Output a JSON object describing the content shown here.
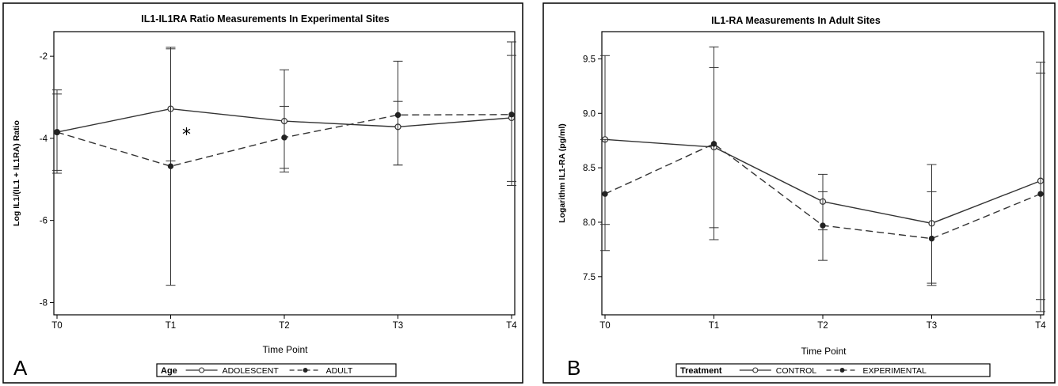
{
  "chart_data": [
    {
      "type": "line",
      "panel_label": "A",
      "title": "IL1-IL1RA Ratio Measurements In Experimental Sites",
      "xlabel": "Time Point",
      "ylabel": "Log IL1/(IL1 + IL1RA) Ratio",
      "categories": [
        "T0",
        "T1",
        "T2",
        "T3",
        "T4"
      ],
      "ylim": [
        -8.3,
        -1.4
      ],
      "yticks": [
        -8,
        -6,
        -4,
        -2
      ],
      "grid": false,
      "legend": {
        "title": "Age",
        "placement": "bottom"
      },
      "annotations": [
        {
          "text": "*",
          "x": "T1",
          "y": -3.8
        }
      ],
      "series": [
        {
          "name": "ADOLESCENT",
          "style": "solid",
          "marker": "open-circle",
          "values": [
            -3.85,
            -3.28,
            -3.58,
            -3.72,
            -3.5
          ],
          "err_low": [
            -4.78,
            -4.55,
            -4.73,
            -4.65,
            -5.05
          ],
          "err_high": [
            -2.92,
            -1.82,
            -2.33,
            -2.12,
            -1.98
          ]
        },
        {
          "name": "ADULT",
          "style": "dashed",
          "marker": "filled-circle",
          "values": [
            -3.85,
            -4.68,
            -3.98,
            -3.43,
            -3.42
          ],
          "err_low": [
            -4.85,
            -7.58,
            -4.82,
            -4.65,
            -5.15
          ],
          "err_high": [
            -2.82,
            -1.78,
            -3.22,
            -3.1,
            -1.65
          ]
        }
      ]
    },
    {
      "type": "line",
      "panel_label": "B",
      "title": "IL1-RA Measurements In Adult Sites",
      "xlabel": "Time Point",
      "ylabel": "Logarithm IL1-RA (pg/ml)",
      "categories": [
        "T0",
        "T1",
        "T2",
        "T3",
        "T4"
      ],
      "ylim": [
        7.15,
        9.75
      ],
      "yticks": [
        7.5,
        8.0,
        8.5,
        9.0,
        9.5
      ],
      "ytick_labels": [
        "7.5",
        "8.0",
        "8.5",
        "9.0",
        "9.5"
      ],
      "grid": false,
      "legend": {
        "title": "Treatment",
        "placement": "bottom"
      },
      "series": [
        {
          "name": "CONTROL",
          "style": "solid",
          "marker": "open-circle",
          "values": [
            8.76,
            8.69,
            8.19,
            7.99,
            8.38
          ],
          "err_low": [
            7.98,
            7.95,
            7.93,
            7.42,
            7.29
          ],
          "err_high": [
            9.53,
            9.42,
            8.44,
            8.53,
            9.47
          ]
        },
        {
          "name": "EXPERIMENTAL",
          "style": "dashed",
          "marker": "filled-circle",
          "values": [
            8.26,
            8.72,
            7.97,
            7.85,
            8.26
          ],
          "err_low": [
            7.74,
            7.84,
            7.65,
            7.44,
            7.18
          ],
          "err_high": [
            8.76,
            9.61,
            8.28,
            8.28,
            9.37
          ]
        }
      ]
    }
  ]
}
